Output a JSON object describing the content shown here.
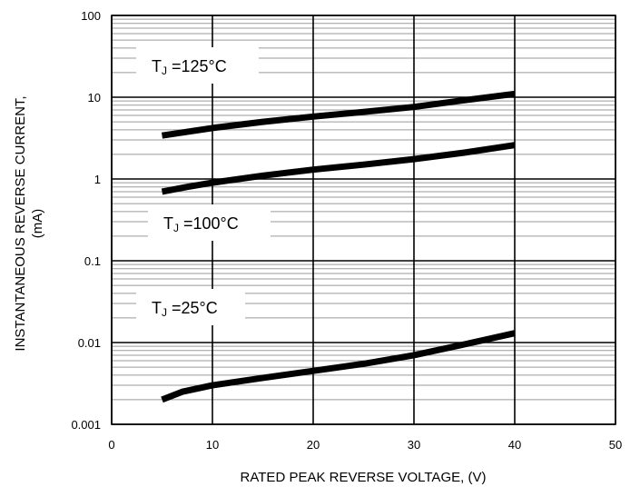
{
  "chart_data": {
    "type": "line",
    "title": "",
    "xlabel": "RATED PEAK REVERSE VOLTAGE, (V)",
    "ylabel_line1": "INSTANTANEOUS REVERSE CURRENT,",
    "ylabel_line2": "(mA)",
    "x_scale": "linear",
    "y_scale": "log",
    "xlim": [
      0,
      50
    ],
    "ylim": [
      0.001,
      100
    ],
    "x_ticks": [
      0,
      10,
      20,
      30,
      40,
      50
    ],
    "x_tick_labels": [
      "0",
      "10",
      "20",
      "30",
      "40",
      "50"
    ],
    "y_ticks": [
      0.001,
      0.01,
      0.1,
      1,
      10,
      100
    ],
    "y_tick_labels": [
      "0.001",
      "0.01",
      "0.1",
      "1",
      "10",
      "100"
    ],
    "grid": true,
    "minor_grid_y": true,
    "colors": {
      "line": "#000000",
      "grid": "#000000",
      "minor_grid": "#9a9a9a"
    },
    "series": [
      {
        "name": "T_J = 125°C",
        "label_main": "T",
        "label_sub": "J",
        "label_rest": " =125°C",
        "x": [
          5,
          10,
          15,
          20,
          25,
          30,
          35,
          40
        ],
        "y": [
          3.4,
          4.2,
          5.0,
          5.8,
          6.6,
          7.6,
          9.2,
          11
        ]
      },
      {
        "name": "T_J = 100°C",
        "label_main": "T",
        "label_sub": "J",
        "label_rest": " =100°C",
        "x": [
          5,
          7.5,
          10,
          15,
          20,
          25,
          30,
          35,
          40
        ],
        "y": [
          0.7,
          0.8,
          0.9,
          1.1,
          1.3,
          1.5,
          1.75,
          2.1,
          2.6
        ]
      },
      {
        "name": "T_J = 25°C",
        "label_main": "T",
        "label_sub": "J",
        "label_rest": " =25°C",
        "x": [
          5,
          7,
          10,
          15,
          20,
          25,
          30,
          35,
          40
        ],
        "y": [
          0.002,
          0.0025,
          0.003,
          0.0037,
          0.0045,
          0.0055,
          0.007,
          0.0095,
          0.013
        ]
      }
    ]
  }
}
